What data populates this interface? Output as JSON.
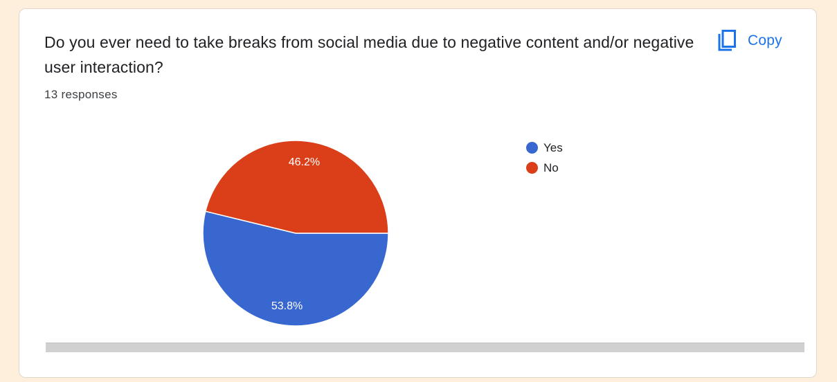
{
  "card": {
    "question": "Do you ever need to take breaks from social media due to negative content and/or negative user interaction?",
    "responses_label": "13 responses",
    "copy_label": "Copy",
    "copy_icon": "copy-icon"
  },
  "chart_data": {
    "type": "pie",
    "title": "",
    "slices": [
      {
        "label": "Yes",
        "value": 53.8,
        "display": "53.8%",
        "color": "#3767cf"
      },
      {
        "label": "No",
        "value": 46.2,
        "display": "46.2%",
        "color": "#db3f19"
      }
    ],
    "start": "counterclockwise from 3 o'clock: Yes first, then No",
    "legend_position": "right"
  },
  "colors": {
    "accent": "#1a73e8",
    "background": "#fdefdc"
  }
}
